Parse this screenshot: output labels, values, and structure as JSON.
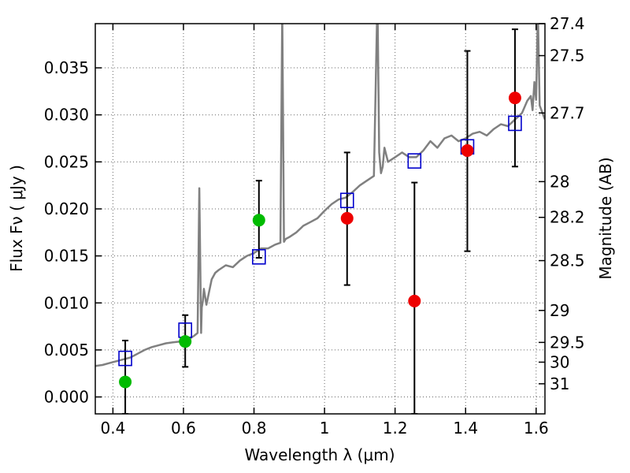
{
  "chart_data": {
    "type": "scatter",
    "xlabel": "Wavelength  λ (μm)",
    "ylabel": "Flux  Fν  ( μJy )",
    "y2label": "Magnitude (AB)",
    "xlim": [
      0.35,
      1.625
    ],
    "ylim": [
      -0.0018,
      0.0397
    ],
    "grid": true,
    "xticks": [
      0.4,
      0.6,
      0.8,
      1.0,
      1.2,
      1.4,
      1.6
    ],
    "xtick_labels": [
      "0.4",
      "0.6",
      "0.8",
      "1",
      "1.2",
      "1.4",
      "1.6"
    ],
    "yticks": [
      0.0,
      0.005,
      0.01,
      0.015,
      0.02,
      0.025,
      0.03,
      0.035
    ],
    "ytick_labels": [
      "0.000",
      "0.005",
      "0.010",
      "0.015",
      "0.020",
      "0.025",
      "0.030",
      "0.035"
    ],
    "y2ticks": [
      {
        "flux": 0.0397,
        "label": "27.4"
      },
      {
        "flux": 0.0363,
        "label": "27.5"
      },
      {
        "flux": 0.0302,
        "label": "27.7"
      },
      {
        "flux": 0.0229,
        "label": "28"
      },
      {
        "flux": 0.0191,
        "label": "28.2"
      },
      {
        "flux": 0.0145,
        "label": "28.5"
      },
      {
        "flux": 0.0092,
        "label": "29"
      },
      {
        "flux": 0.0058,
        "label": "29.5"
      },
      {
        "flux": 0.0037,
        "label": "30"
      },
      {
        "flux": 0.0014,
        "label": "31"
      }
    ],
    "colors": {
      "model": "#808080",
      "green": "#00bb00",
      "red": "#ee0000",
      "square": "#0000cc",
      "errorbar": "#000000",
      "grid": "#666666"
    },
    "model_spectrum": {
      "x": [
        0.35,
        0.37,
        0.39,
        0.41,
        0.43,
        0.45,
        0.47,
        0.49,
        0.51,
        0.53,
        0.55,
        0.57,
        0.59,
        0.61,
        0.63,
        0.64,
        0.645,
        0.65,
        0.652,
        0.655,
        0.658,
        0.665,
        0.68,
        0.69,
        0.7,
        0.72,
        0.74,
        0.76,
        0.78,
        0.8,
        0.82,
        0.84,
        0.86,
        0.875,
        0.88,
        0.885,
        0.89,
        0.9,
        0.92,
        0.94,
        0.96,
        0.98,
        1.0,
        1.02,
        1.04,
        1.06,
        1.08,
        1.1,
        1.12,
        1.14,
        1.15,
        1.155,
        1.16,
        1.165,
        1.17,
        1.18,
        1.2,
        1.22,
        1.24,
        1.26,
        1.28,
        1.3,
        1.32,
        1.34,
        1.36,
        1.38,
        1.4,
        1.42,
        1.44,
        1.46,
        1.48,
        1.5,
        1.52,
        1.54,
        1.56,
        1.575,
        1.585,
        1.59,
        1.595,
        1.6,
        1.605,
        1.61,
        1.625
      ],
      "y": [
        0.0033,
        0.0034,
        0.0036,
        0.0038,
        0.004,
        0.0042,
        0.0046,
        0.005,
        0.0053,
        0.0055,
        0.0057,
        0.0058,
        0.0059,
        0.006,
        0.0065,
        0.0068,
        0.0222,
        0.0068,
        0.0095,
        0.0102,
        0.0115,
        0.0098,
        0.0125,
        0.0132,
        0.0135,
        0.014,
        0.0138,
        0.0145,
        0.015,
        0.0153,
        0.0158,
        0.0158,
        0.0162,
        0.0164,
        0.041,
        0.0165,
        0.0168,
        0.017,
        0.0175,
        0.0182,
        0.0186,
        0.019,
        0.0198,
        0.0205,
        0.021,
        0.0212,
        0.0218,
        0.0225,
        0.023,
        0.0235,
        0.0425,
        0.026,
        0.0238,
        0.0245,
        0.0265,
        0.025,
        0.0255,
        0.026,
        0.0255,
        0.0255,
        0.0262,
        0.0272,
        0.0265,
        0.0275,
        0.0278,
        0.0272,
        0.0275,
        0.028,
        0.0282,
        0.0278,
        0.0285,
        0.029,
        0.0288,
        0.0295,
        0.0302,
        0.0315,
        0.032,
        0.0305,
        0.0335,
        0.0316,
        0.041,
        0.031,
        0.0295
      ]
    },
    "model_squares": {
      "x": [
        0.435,
        0.605,
        0.814,
        1.064,
        1.255,
        1.405,
        1.54
      ],
      "y": [
        0.0041,
        0.0071,
        0.0149,
        0.0209,
        0.0251,
        0.0266,
        0.0291
      ]
    },
    "detections": {
      "x": [
        0.435,
        0.605,
        0.814
      ],
      "y": [
        0.0016,
        0.0059,
        0.0188
      ],
      "yerr_low": [
        -0.0018,
        0.0032,
        0.0148
      ],
      "yerr_high": [
        0.006,
        0.0087,
        0.023
      ]
    },
    "measurements": {
      "x": [
        1.064,
        1.255,
        1.405,
        1.54
      ],
      "y": [
        0.019,
        0.0102,
        0.0262,
        0.0318
      ],
      "yerr_low": [
        0.0119,
        -0.0018,
        0.0155,
        0.0245
      ],
      "yerr_high": [
        0.026,
        0.0228,
        0.0368,
        0.0391
      ]
    }
  }
}
